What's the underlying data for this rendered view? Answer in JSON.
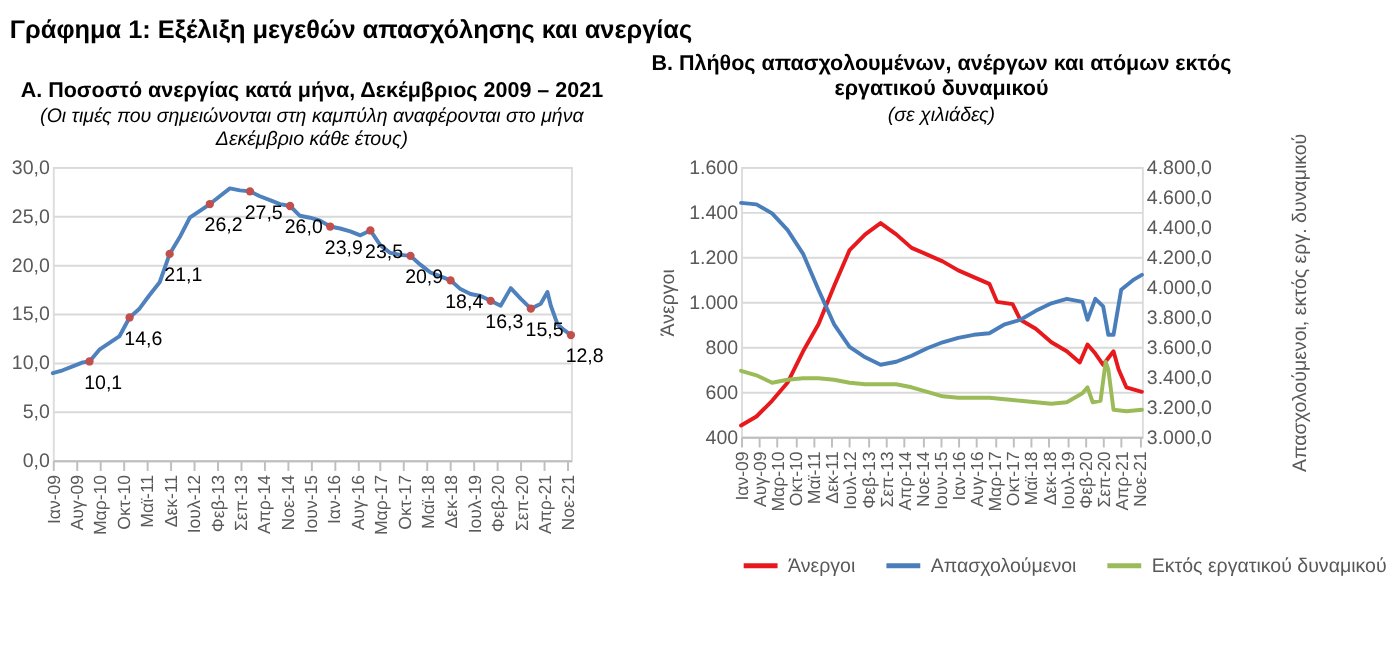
{
  "chart_data": [
    {
      "type": "line",
      "title": "Α. Ποσοστό ανεργίας κατά μήνα, Δεκέμβριος 2009 – 2021",
      "subtitle": "(Οι τιμές που σημειώνονται στη καμπύλη αναφέρονται στο μήνα Δεκέμβριο κάθε έτους)",
      "annotations": [
        "Γράφημα 1: Εξέλιξη μεγεθών απασχόλησης και ανεργίας"
      ],
      "xlim": [
        "2009-01",
        "2021-12"
      ],
      "xticks": [
        {
          "value": "2009-01",
          "label": "Ιαν-09"
        },
        {
          "value": "2009-08",
          "label": "Αυγ-09"
        },
        {
          "value": "2010-03",
          "label": "Μαρ-10"
        },
        {
          "value": "2010-10",
          "label": "Οκτ-10"
        },
        {
          "value": "2011-05",
          "label": "Μαϊ-11"
        },
        {
          "value": "2011-12",
          "label": "Δεκ-11"
        },
        {
          "value": "2012-07",
          "label": "Ιουλ-12"
        },
        {
          "value": "2013-02",
          "label": "Φεβ-13"
        },
        {
          "value": "2013-09",
          "label": "Σεπ-13"
        },
        {
          "value": "2014-04",
          "label": "Απρ-14"
        },
        {
          "value": "2014-11",
          "label": "Νοε-14"
        },
        {
          "value": "2015-06",
          "label": "Ιουν-15"
        },
        {
          "value": "2016-01",
          "label": "Ιαν-16"
        },
        {
          "value": "2016-08",
          "label": "Αυγ-16"
        },
        {
          "value": "2017-03",
          "label": "Μαρ-17"
        },
        {
          "value": "2017-10",
          "label": "Οκτ-17"
        },
        {
          "value": "2018-05",
          "label": "Μαϊ-18"
        },
        {
          "value": "2018-12",
          "label": "Δεκ-18"
        },
        {
          "value": "2019-07",
          "label": "Ιουλ-19"
        },
        {
          "value": "2020-02",
          "label": "Φεβ-20"
        },
        {
          "value": "2020-09",
          "label": "Σεπ-20"
        },
        {
          "value": "2021-04",
          "label": "Απρ-21"
        },
        {
          "value": "2021-11",
          "label": "Νοε-21"
        }
      ],
      "ylim": [
        0,
        30
      ],
      "yticks": [
        {
          "value": 0,
          "label": "0,0"
        },
        {
          "value": 5,
          "label": "5,0"
        },
        {
          "value": 10,
          "label": "10,0"
        },
        {
          "value": 15,
          "label": "15,0"
        },
        {
          "value": 20,
          "label": "20,0"
        },
        {
          "value": 25,
          "label": "25,0"
        },
        {
          "value": 30,
          "label": "30,0"
        }
      ],
      "grid": "y",
      "series": [
        {
          "color": "#4f81bd",
          "x": [
            "2009-01",
            "2009-04",
            "2009-07",
            "2009-10",
            "2009-12",
            "2010-03",
            "2010-06",
            "2010-09",
            "2010-12",
            "2011-03",
            "2011-06",
            "2011-09",
            "2011-12",
            "2012-03",
            "2012-06",
            "2012-09",
            "2012-12",
            "2013-03",
            "2013-06",
            "2013-09",
            "2013-12",
            "2014-03",
            "2014-06",
            "2014-09",
            "2014-12",
            "2015-03",
            "2015-06",
            "2015-09",
            "2015-12",
            "2016-03",
            "2016-06",
            "2016-09",
            "2016-12",
            "2017-03",
            "2017-06",
            "2017-09",
            "2017-12",
            "2018-03",
            "2018-06",
            "2018-09",
            "2018-12",
            "2019-03",
            "2019-06",
            "2019-09",
            "2019-12",
            "2020-03",
            "2020-06",
            "2020-09",
            "2020-12",
            "2021-03",
            "2021-05",
            "2021-06",
            "2021-08",
            "2021-10",
            "2021-12"
          ],
          "values": [
            8.9,
            9.2,
            9.6,
            10.0,
            10.1,
            11.3,
            12.0,
            12.7,
            14.6,
            15.5,
            16.9,
            18.2,
            21.1,
            22.8,
            24.8,
            25.5,
            26.2,
            27.0,
            27.8,
            27.6,
            27.5,
            27.0,
            26.6,
            26.2,
            26.0,
            25.0,
            24.8,
            24.5,
            23.9,
            23.7,
            23.4,
            23.0,
            23.5,
            22.0,
            21.2,
            21.0,
            20.9,
            20.0,
            19.2,
            18.8,
            18.4,
            17.5,
            17.0,
            16.8,
            16.3,
            15.8,
            17.6,
            16.5,
            15.5,
            16.0,
            17.2,
            15.8,
            13.9,
            13.3,
            12.8
          ]
        },
        {
          "type": "scatter",
          "color": "#c0504d",
          "x": [
            "2009-12",
            "2010-12",
            "2011-12",
            "2012-12",
            "2013-12",
            "2014-12",
            "2015-12",
            "2016-12",
            "2017-12",
            "2018-12",
            "2019-12",
            "2020-12",
            "2021-12"
          ],
          "values": [
            10.1,
            14.6,
            21.1,
            26.2,
            27.5,
            26.0,
            23.9,
            23.5,
            20.9,
            18.4,
            16.3,
            15.5,
            12.8
          ],
          "value_labels": [
            "10,1",
            "14,6",
            "21,1",
            "26,2",
            "27,5",
            "26,0",
            "23,9",
            "23,5",
            "20,9",
            "18,4",
            "16,3",
            "15,5",
            "12,8"
          ]
        }
      ]
    },
    {
      "type": "line",
      "title": "Β. Πλήθος απασχολουμένων, ανέργων και ατόμων εκτός εργατικού δυναμικού",
      "subtitle": "(σε χιλιάδες)",
      "ylabel": "Άνεργοι",
      "y2label": "Απασχολούμενοι, εκτός εργ. δυναμικού",
      "xlim": [
        "2009-01",
        "2021-12"
      ],
      "xticks": [
        {
          "value": "2009-01",
          "label": "Ιαν-09"
        },
        {
          "value": "2009-08",
          "label": "Αυγ-09"
        },
        {
          "value": "2010-03",
          "label": "Μαρ-10"
        },
        {
          "value": "2010-10",
          "label": "Οκτ-10"
        },
        {
          "value": "2011-05",
          "label": "Μαϊ-11"
        },
        {
          "value": "2011-12",
          "label": "Δεκ-11"
        },
        {
          "value": "2012-07",
          "label": "Ιουλ-12"
        },
        {
          "value": "2013-02",
          "label": "Φεβ-13"
        },
        {
          "value": "2013-09",
          "label": "Σεπ-13"
        },
        {
          "value": "2014-04",
          "label": "Απρ-14"
        },
        {
          "value": "2014-11",
          "label": "Νοε-14"
        },
        {
          "value": "2015-06",
          "label": "Ιουν-15"
        },
        {
          "value": "2016-01",
          "label": "Ιαν-16"
        },
        {
          "value": "2016-08",
          "label": "Αυγ-16"
        },
        {
          "value": "2017-03",
          "label": "Μαρ-17"
        },
        {
          "value": "2017-10",
          "label": "Οκτ-17"
        },
        {
          "value": "2018-05",
          "label": "Μαϊ-18"
        },
        {
          "value": "2018-12",
          "label": "Δεκ-18"
        },
        {
          "value": "2019-07",
          "label": "Ιουλ-19"
        },
        {
          "value": "2020-02",
          "label": "Φεβ-20"
        },
        {
          "value": "2020-09",
          "label": "Σεπ-20"
        },
        {
          "value": "2021-04",
          "label": "Απρ-21"
        },
        {
          "value": "2021-11",
          "label": "Νοε-21"
        }
      ],
      "ylim": [
        400,
        1600
      ],
      "yticks": [
        400,
        600,
        800,
        {
          "value": 1000,
          "label": "1.000"
        },
        {
          "value": 1200,
          "label": "1.200"
        },
        {
          "value": 1400,
          "label": "1.400"
        },
        {
          "value": 1600,
          "label": "1.600"
        }
      ],
      "y2lim": [
        3000,
        4800
      ],
      "y2ticks": [
        {
          "value": 3000,
          "label": "3.000,0"
        },
        {
          "value": 3200,
          "label": "3.200,0"
        },
        {
          "value": 3400,
          "label": "3.400,0"
        },
        {
          "value": 3600,
          "label": "3.600,0"
        },
        {
          "value": 3800,
          "label": "3.800,0"
        },
        {
          "value": 4000,
          "label": "4.000,0"
        },
        {
          "value": 4200,
          "label": "4.200,0"
        },
        {
          "value": 4400,
          "label": "4.400,0"
        },
        {
          "value": 4600,
          "label": "4.600,0"
        },
        {
          "value": 4800,
          "label": "4.800,0"
        }
      ],
      "grid": "y",
      "legend": "bottom",
      "series": [
        {
          "name": "Άνεργοι",
          "color": "#e8191c",
          "x": [
            "2009-01",
            "2009-07",
            "2010-01",
            "2010-07",
            "2011-01",
            "2011-07",
            "2012-01",
            "2012-07",
            "2013-01",
            "2013-07",
            "2014-01",
            "2014-07",
            "2015-01",
            "2015-07",
            "2016-01",
            "2016-07",
            "2017-01",
            "2017-04",
            "2017-10",
            "2018-01",
            "2018-07",
            "2019-01",
            "2019-07",
            "2019-12",
            "2020-03",
            "2020-06",
            "2020-09",
            "2021-01",
            "2021-03",
            "2021-06",
            "2021-12"
          ],
          "values": [
            450,
            490,
            560,
            640,
            780,
            900,
            1070,
            1230,
            1300,
            1350,
            1300,
            1240,
            1210,
            1180,
            1140,
            1110,
            1080,
            1000,
            990,
            920,
            880,
            820,
            780,
            730,
            810,
            770,
            720,
            780,
            700,
            620,
            600
          ]
        },
        {
          "name": "Απασχολούμενοι",
          "axis": "y2",
          "color": "#4a7ebb",
          "x": [
            "2009-01",
            "2009-07",
            "2010-01",
            "2010-07",
            "2011-01",
            "2011-07",
            "2012-01",
            "2012-07",
            "2013-01",
            "2013-07",
            "2014-01",
            "2014-07",
            "2015-01",
            "2015-07",
            "2016-01",
            "2016-07",
            "2017-01",
            "2017-07",
            "2018-01",
            "2018-07",
            "2019-01",
            "2019-07",
            "2020-01",
            "2020-03",
            "2020-06",
            "2020-09",
            "2020-11",
            "2021-01",
            "2021-04",
            "2021-09",
            "2021-12"
          ],
          "values": [
            4560,
            4550,
            4490,
            4380,
            4220,
            3980,
            3750,
            3600,
            3530,
            3480,
            3500,
            3540,
            3590,
            3630,
            3660,
            3680,
            3690,
            3750,
            3780,
            3840,
            3890,
            3920,
            3900,
            3780,
            3920,
            3870,
            3680,
            3680,
            3980,
            4050,
            4080
          ]
        },
        {
          "name": "Εκτός εργατικού δυναμικού",
          "axis": "y2",
          "color": "#9bbb59",
          "x": [
            "2009-01",
            "2009-07",
            "2010-01",
            "2010-07",
            "2011-01",
            "2011-07",
            "2012-01",
            "2012-07",
            "2013-01",
            "2013-07",
            "2014-01",
            "2014-07",
            "2015-01",
            "2015-07",
            "2016-01",
            "2016-07",
            "2017-01",
            "2017-07",
            "2018-01",
            "2018-07",
            "2019-01",
            "2019-07",
            "2020-01",
            "2020-03",
            "2020-05",
            "2020-08",
            "2020-10",
            "2020-11",
            "2021-01",
            "2021-06",
            "2021-12"
          ],
          "values": [
            3440,
            3410,
            3360,
            3380,
            3390,
            3390,
            3380,
            3360,
            3350,
            3350,
            3350,
            3330,
            3300,
            3270,
            3260,
            3260,
            3260,
            3250,
            3240,
            3230,
            3220,
            3230,
            3290,
            3330,
            3230,
            3240,
            3500,
            3450,
            3180,
            3170,
            3180
          ]
        }
      ]
    }
  ]
}
